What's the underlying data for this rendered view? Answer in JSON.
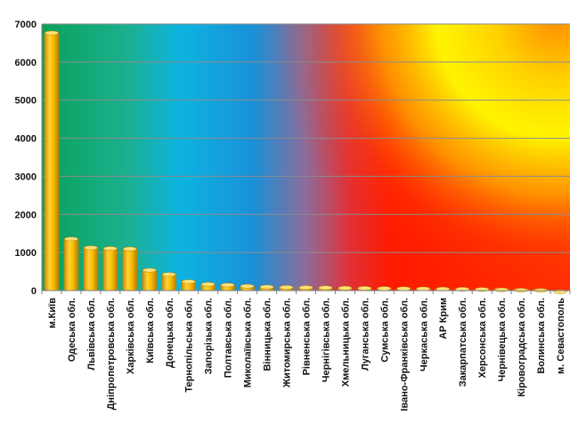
{
  "chart_data": {
    "type": "bar",
    "title": "",
    "xlabel": "",
    "ylabel": "",
    "ylim": [
      0,
      7000
    ],
    "yticks": [
      0,
      1000,
      2000,
      3000,
      4000,
      5000,
      6000,
      7000
    ],
    "grid": true,
    "legend": "none",
    "categories": [
      "м.Київ",
      "Одеська обл.",
      "Львівська обл.",
      "Дніпропетровська обл.",
      "Харківська обл.",
      "Київська обл.",
      "Донецька обл.",
      "Тернопільська обл.",
      "Запорізька обл.",
      "Полтавська обл.",
      "Миколаївська обл.",
      "Вінницька обл.",
      "Житомирська обл.",
      "Рівненська обл.",
      "Чернігівська обл.",
      "Хмельницька обл.",
      "Луганська обл.",
      "Сумська обл.",
      "Івано-Франківська обл.",
      "Черкаська обл.",
      "АР Крим",
      "Закарпатська обл.",
      "Херсонська обл.",
      "Чернівецька обл.",
      "Кіровоградська обл.",
      "Волинська обл.",
      "м. Севастополь"
    ],
    "values": [
      6800,
      1390,
      1160,
      1140,
      1130,
      570,
      460,
      270,
      200,
      180,
      150,
      130,
      120,
      115,
      110,
      100,
      95,
      90,
      85,
      80,
      75,
      70,
      65,
      55,
      45,
      40,
      5
    ],
    "colors": {
      "bar_fill": "#ffc000",
      "bar_edge": "#b8860b",
      "grid": "#8c8c8c",
      "axis": "#808080"
    }
  }
}
